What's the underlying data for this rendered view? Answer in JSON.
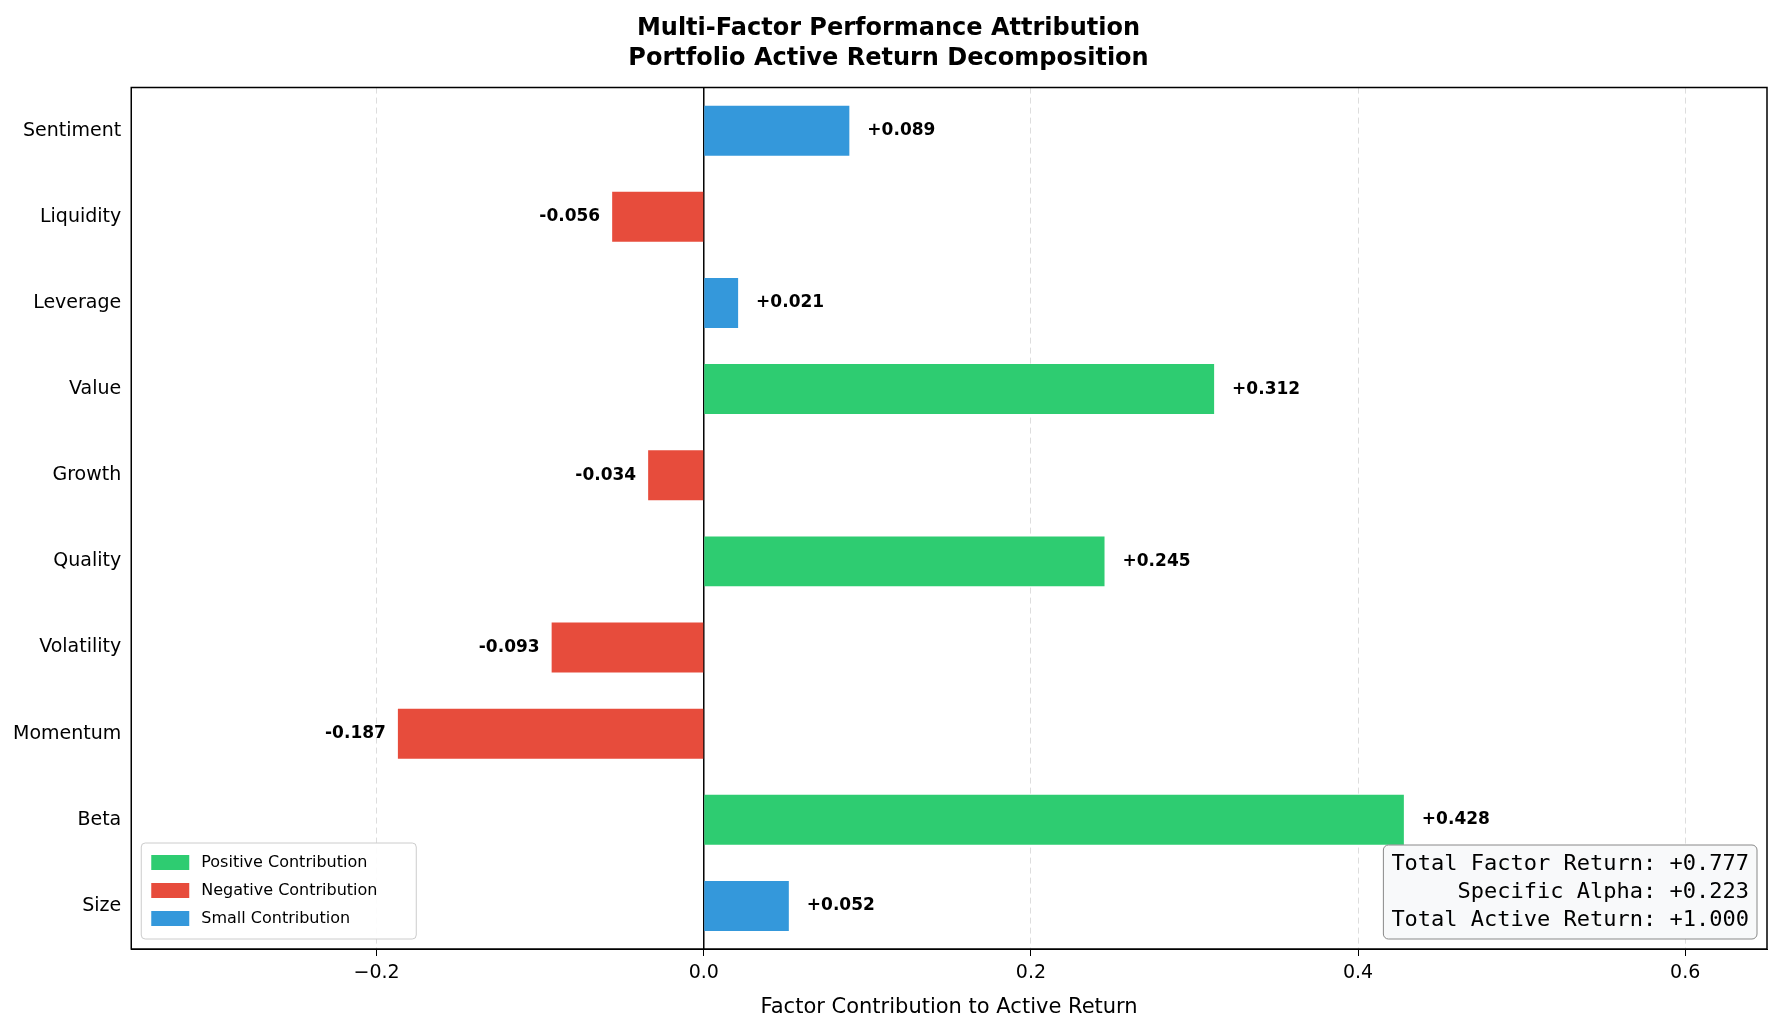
{
  "chart_data": {
    "type": "bar",
    "orientation": "horizontal",
    "stacked": true,
    "title": "Multi-Factor Performance Attribution",
    "subtitle": "Portfolio Active Return Decomposition",
    "xlabel": "Factor Contribution to Active Return",
    "categories": [
      "Sentiment",
      "Liquidity",
      "Leverage",
      "Value",
      "Growth",
      "Quality",
      "Volatility",
      "Momentum",
      "Beta",
      "Size"
    ],
    "series": [
      {
        "name": "Positive Contribution",
        "color": "#2ecc71",
        "values": [
          null,
          null,
          null,
          0.312,
          null,
          0.245,
          null,
          null,
          0.428,
          null
        ],
        "value_labels": [
          null,
          null,
          null,
          "+0.312",
          null,
          "+0.245",
          null,
          null,
          "+0.428",
          null
        ]
      },
      {
        "name": "Negative Contribution",
        "color": "#e74c3c",
        "values": [
          null,
          -0.056,
          null,
          null,
          -0.034,
          null,
          -0.093,
          -0.187,
          null,
          null
        ],
        "value_labels": [
          null,
          "-0.056",
          null,
          null,
          "-0.034",
          null,
          "-0.093",
          "-0.187",
          null,
          null
        ]
      },
      {
        "name": "Small Contribution",
        "color": "#3498db",
        "values": [
          0.089,
          null,
          0.021,
          null,
          null,
          null,
          null,
          null,
          null,
          0.052
        ],
        "value_labels": [
          "+0.089",
          null,
          "+0.021",
          null,
          null,
          null,
          null,
          null,
          null,
          "+0.052"
        ]
      }
    ],
    "xlim": [
      -0.35,
      0.65
    ],
    "xticks": [
      {
        "value": -0.2,
        "label": "−0.2"
      },
      {
        "value": 0,
        "label": "0.0"
      },
      {
        "value": 0.2,
        "label": "0.2"
      },
      {
        "value": 0.4,
        "label": "0.4"
      },
      {
        "value": 0.6,
        "label": "0.6"
      }
    ],
    "grid": "x",
    "legend": "bottom left",
    "ref_lines": [
      {
        "axis": "x",
        "value": 0,
        "color": "#000000"
      }
    ],
    "annotations": [
      "Total Factor Return: +0.777",
      "Specific Alpha: +0.223",
      "Total Active Return: +1.000"
    ]
  }
}
